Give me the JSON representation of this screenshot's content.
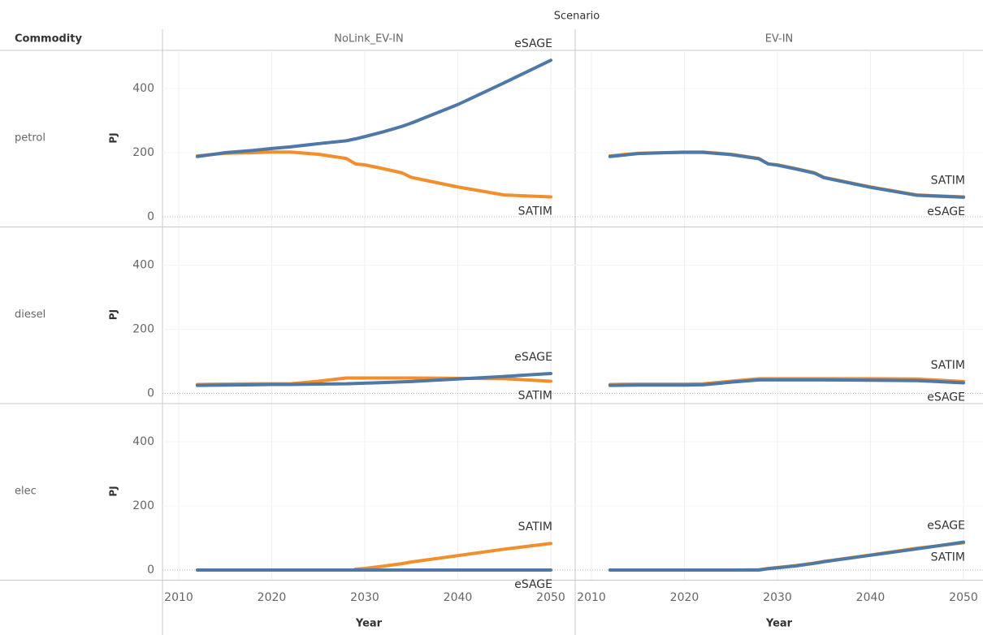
{
  "chart_data": {
    "type": "line",
    "title": "Scenario",
    "row_header": "Commodity",
    "columns": [
      "NoLink_EV-IN",
      "EV-IN"
    ],
    "y_label": "PJ",
    "x_label": "Year",
    "xlim": [
      2010,
      2050
    ],
    "xticks": [
      2010,
      2020,
      2030,
      2040,
      2050
    ],
    "ylim": [
      0,
      500
    ],
    "yticks": [
      0,
      200,
      400
    ],
    "grid": true,
    "x": [
      2012,
      2015,
      2018,
      2020,
      2022,
      2025,
      2028,
      2029,
      2030,
      2032,
      2034,
      2035,
      2040,
      2045,
      2050
    ],
    "rows": [
      {
        "name": "petrol",
        "panels": [
          {
            "series": [
              {
                "name": "SATIM",
                "color": "#f28e2b",
                "values": [
                  190,
                  198,
                  200,
                  202,
                  202,
                  195,
                  182,
                  165,
                  162,
                  150,
                  137,
                  123,
                  93,
                  68,
                  62
                ]
              },
              {
                "name": "eSAGE",
                "color": "#4e79a7",
                "values": [
                  188,
                  200,
                  207,
                  213,
                  218,
                  228,
                  237,
                  243,
                  250,
                  265,
                  282,
                  292,
                  350,
                  418,
                  488
                ]
              }
            ]
          },
          {
            "series": [
              {
                "name": "SATIM",
                "color": "#f28e2b",
                "values": [
                  190,
                  198,
                  200,
                  202,
                  202,
                  195,
                  182,
                  165,
                  162,
                  150,
                  137,
                  123,
                  93,
                  68,
                  62
                ]
              },
              {
                "name": "eSAGE",
                "color": "#4e79a7",
                "values": [
                  188,
                  197,
                  200,
                  201,
                  201,
                  194,
                  181,
                  165,
                  161,
                  149,
                  136,
                  122,
                  92,
                  67,
                  61
                ]
              }
            ]
          }
        ]
      },
      {
        "name": "diesel",
        "panels": [
          {
            "series": [
              {
                "name": "SATIM",
                "color": "#f28e2b",
                "values": [
                  28,
                  29,
                  30,
                  30,
                  30,
                  38,
                  48,
                  48,
                  48,
                  48,
                  48,
                  48,
                  47,
                  46,
                  38
                ]
              },
              {
                "name": "eSAGE",
                "color": "#4e79a7",
                "values": [
                  25,
                  26,
                  27,
                  28,
                  28,
                  29,
                  30,
                  31,
                  32,
                  34,
                  36,
                  37,
                  45,
                  53,
                  62
                ]
              }
            ]
          },
          {
            "series": [
              {
                "name": "SATIM",
                "color": "#f28e2b",
                "values": [
                  28,
                  29,
                  29,
                  29,
                  30,
                  38,
                  46,
                  46,
                  46,
                  46,
                  46,
                  46,
                  46,
                  45,
                  37
                ]
              },
              {
                "name": "eSAGE",
                "color": "#4e79a7",
                "values": [
                  25,
                  26,
                  26,
                  26,
                  27,
                  35,
                  42,
                  42,
                  42,
                  42,
                  42,
                  42,
                  41,
                  40,
                  33
                ]
              }
            ]
          }
        ]
      },
      {
        "name": "elec",
        "panels": [
          {
            "series": [
              {
                "name": "SATIM",
                "color": "#f28e2b",
                "values": [
                  null,
                  null,
                  null,
                  null,
                  null,
                  null,
                  null,
                  3,
                  5,
                  12,
                  20,
                  25,
                  45,
                  65,
                  83
                ]
              },
              {
                "name": "eSAGE",
                "color": "#4e79a7",
                "values": [
                  0,
                  0,
                  0,
                  0,
                  0,
                  0,
                  0,
                  0,
                  0,
                  0,
                  0,
                  0,
                  0,
                  0,
                  0
                ]
              }
            ]
          },
          {
            "series": [
              {
                "name": "SATIM",
                "color": "#f28e2b",
                "values": [
                  0,
                  0,
                  0,
                  0,
                  0,
                  0,
                  1,
                  5,
                  8,
                  14,
                  22,
                  27,
                  47,
                  68,
                  85
                ]
              },
              {
                "name": "eSAGE",
                "color": "#4e79a7",
                "values": [
                  0,
                  0,
                  0,
                  0,
                  0,
                  0,
                  0,
                  4,
                  7,
                  13,
                  21,
                  26,
                  46,
                  66,
                  87
                ]
              }
            ]
          }
        ]
      }
    ]
  }
}
